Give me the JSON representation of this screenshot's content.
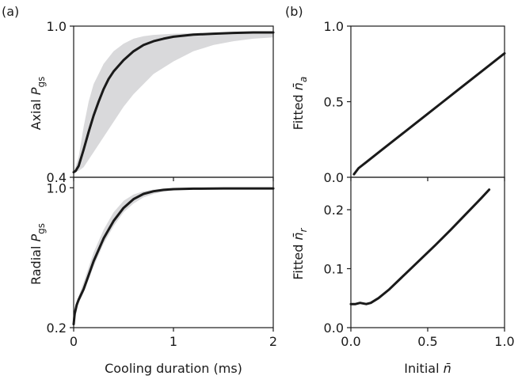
{
  "panel_labels": {
    "a": "(a)",
    "b": "(b)"
  },
  "colors": {
    "curve": "#1a1a1a",
    "band": "#d9d9db",
    "axes": "#1a1a1a"
  },
  "chart_data": [
    {
      "id": "axial-pgs",
      "type": "line",
      "panel": "a-top",
      "title": "",
      "xlabel": "",
      "ylabel_main": "Axial ",
      "ylabel_var": "P",
      "ylabel_sub": "gs",
      "xlim": [
        0,
        2
      ],
      "ylim": [
        0.4,
        1.0
      ],
      "xticks": [
        0,
        1,
        2
      ],
      "xtick_labels": [
        "",
        "",
        ""
      ],
      "yticks": [
        0.4,
        1.0
      ],
      "ytick_labels": [
        "0.4",
        "1.0"
      ],
      "grid": false,
      "series": [
        {
          "role": "mean",
          "x": [
            0.0,
            0.02,
            0.05,
            0.1,
            0.15,
            0.2,
            0.25,
            0.3,
            0.35,
            0.4,
            0.5,
            0.6,
            0.7,
            0.8,
            0.9,
            1.0,
            1.2,
            1.4,
            1.6,
            1.8,
            2.0
          ],
          "y": [
            0.42,
            0.425,
            0.445,
            0.51,
            0.58,
            0.645,
            0.7,
            0.75,
            0.79,
            0.82,
            0.865,
            0.9,
            0.925,
            0.94,
            0.95,
            0.958,
            0.966,
            0.97,
            0.973,
            0.975,
            0.975
          ]
        }
      ],
      "band": {
        "x": [
          0.0,
          0.05,
          0.1,
          0.15,
          0.2,
          0.3,
          0.4,
          0.5,
          0.6,
          0.7,
          0.8,
          1.0,
          1.2,
          1.4,
          1.6,
          1.8,
          2.0
        ],
        "lower": [
          0.42,
          0.425,
          0.44,
          0.47,
          0.5,
          0.56,
          0.62,
          0.68,
          0.73,
          0.77,
          0.81,
          0.86,
          0.9,
          0.925,
          0.94,
          0.95,
          0.955
        ],
        "upper": [
          0.42,
          0.48,
          0.6,
          0.7,
          0.77,
          0.85,
          0.9,
          0.93,
          0.95,
          0.96,
          0.965,
          0.97,
          0.972,
          0.974,
          0.975,
          0.976,
          0.976
        ]
      }
    },
    {
      "id": "radial-pgs",
      "type": "line",
      "panel": "a-bottom",
      "title": "",
      "xlabel": "Cooling duration (ms)",
      "ylabel_main": "Radial ",
      "ylabel_var": "P",
      "ylabel_sub": "gs",
      "xlim": [
        0,
        2
      ],
      "ylim": [
        0.2,
        1.06
      ],
      "xticks": [
        0,
        1,
        2
      ],
      "xtick_labels": [
        "0",
        "1",
        "2"
      ],
      "yticks": [
        0.2,
        1.0
      ],
      "ytick_labels": [
        "0.2",
        "1.0"
      ],
      "grid": false,
      "series": [
        {
          "role": "mean",
          "x": [
            0.0,
            0.01,
            0.03,
            0.05,
            0.1,
            0.15,
            0.2,
            0.3,
            0.4,
            0.5,
            0.6,
            0.7,
            0.8,
            0.9,
            1.0,
            1.2,
            1.5,
            2.0
          ],
          "y": [
            0.22,
            0.28,
            0.33,
            0.36,
            0.42,
            0.5,
            0.58,
            0.71,
            0.81,
            0.885,
            0.935,
            0.965,
            0.98,
            0.988,
            0.992,
            0.995,
            0.996,
            0.996
          ]
        }
      ],
      "band": {
        "x": [
          0.0,
          0.05,
          0.1,
          0.2,
          0.3,
          0.4,
          0.5,
          0.6,
          0.7,
          0.8,
          0.9,
          1.0,
          1.2,
          1.5,
          2.0
        ],
        "lower": [
          0.22,
          0.34,
          0.4,
          0.55,
          0.68,
          0.78,
          0.86,
          0.91,
          0.945,
          0.965,
          0.977,
          0.985,
          0.991,
          0.994,
          0.996
        ],
        "upper": [
          0.22,
          0.38,
          0.46,
          0.63,
          0.76,
          0.86,
          0.925,
          0.962,
          0.98,
          0.99,
          0.994,
          0.996,
          0.997,
          0.997,
          0.997
        ]
      }
    },
    {
      "id": "fitted-na",
      "type": "line",
      "panel": "b-top",
      "title": "",
      "xlabel": "",
      "ylabel_main": "Fitted ",
      "ylabel_var": "n̄",
      "ylabel_sub": "a",
      "xlim": [
        0,
        1.0
      ],
      "ylim": [
        0.0,
        1.0
      ],
      "xticks": [
        0,
        0.5,
        1.0
      ],
      "xtick_labels": [
        "",
        "",
        ""
      ],
      "yticks": [
        0.0,
        0.5,
        1.0
      ],
      "ytick_labels": [
        "0.0",
        "0.5",
        "1.0"
      ],
      "grid": false,
      "series": [
        {
          "role": "fit",
          "x": [
            0.02,
            0.05,
            0.1,
            0.2,
            0.3,
            0.4,
            0.5,
            0.6,
            0.7,
            0.8,
            0.9,
            1.0
          ],
          "y": [
            0.02,
            0.06,
            0.1,
            0.18,
            0.26,
            0.34,
            0.42,
            0.5,
            0.58,
            0.66,
            0.74,
            0.82
          ]
        }
      ]
    },
    {
      "id": "fitted-nr",
      "type": "line",
      "panel": "b-bottom",
      "title": "",
      "xlabel": "Initial ",
      "xlabel_var": "n̄",
      "ylabel_main": "Fitted ",
      "ylabel_var": "n̄",
      "ylabel_sub": "r",
      "xlim": [
        0,
        1.0
      ],
      "ylim": [
        0.0,
        0.255
      ],
      "xticks": [
        0,
        0.5,
        1.0
      ],
      "xtick_labels": [
        "0.0",
        "0.5",
        "1.0"
      ],
      "yticks": [
        0.0,
        0.1,
        0.2
      ],
      "ytick_labels": [
        "0.0",
        "0.1",
        "0.2"
      ],
      "grid": false,
      "series": [
        {
          "role": "fit",
          "x": [
            0.0,
            0.03,
            0.06,
            0.1,
            0.13,
            0.18,
            0.25,
            0.35,
            0.45,
            0.55,
            0.65,
            0.75,
            0.85,
            0.9
          ],
          "y": [
            0.04,
            0.04,
            0.042,
            0.04,
            0.042,
            0.05,
            0.065,
            0.09,
            0.115,
            0.14,
            0.166,
            0.193,
            0.22,
            0.234
          ]
        }
      ]
    }
  ]
}
